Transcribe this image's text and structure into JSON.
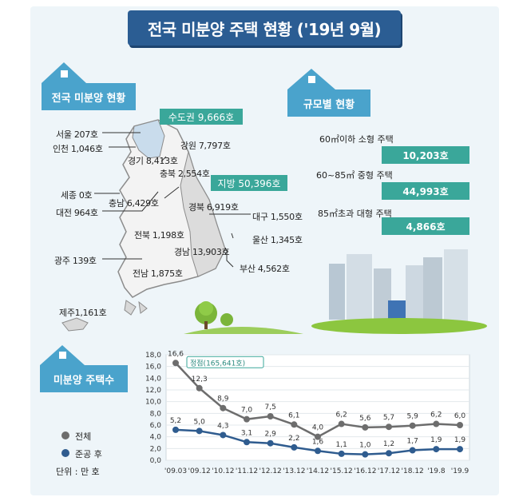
{
  "title": "전국 미분양 주택 현황 ('19년 9월)",
  "regional": {
    "heading": "전국 미분양 현황",
    "capital_badge": "수도권 9,666호",
    "provinces_badge": "지방 50,396호",
    "labels": {
      "seoul": "서울  207호",
      "incheon": "인천 1,046호",
      "gangwon": "강원 7,797호",
      "gyeonggi": "경기 8,413호",
      "chungbuk": "충북 2,554호",
      "sejong": "세종 0호",
      "chungnam": "충남 6,429호",
      "daejeon": "대전 964호",
      "gyeongbuk": "경북 6,919호",
      "daegu": "대구 1,550호",
      "jeonbuk": "전북 1,198호",
      "ulsan": "울산 1,345호",
      "gwangju": "광주 139호",
      "gyeongnam": "경남 13,903호",
      "busan": "부산 4,562호",
      "jeonnam": "전남 1,875호",
      "jeju": "제주1,161호"
    }
  },
  "size": {
    "heading": "규모별 현황",
    "items": [
      {
        "label": "60㎡이하 소형 주택",
        "value": "10,203호"
      },
      {
        "label": "60~85㎡ 중형 주택",
        "value": "44,993호"
      },
      {
        "label": "85㎡초과 대형 주택",
        "value": "4,866호"
      }
    ]
  },
  "count_heading": "미분양 주택수",
  "legend": {
    "total": "전체",
    "completed": "준공 후",
    "unit": "단위 : 만 호"
  },
  "colors": {
    "title_bg": "#2b5d93",
    "tag_bg": "#4aa3cc",
    "teal": "#3aa79a",
    "total": "#6d6d6d",
    "completed": "#2f5c8f"
  },
  "chart_data": {
    "type": "line",
    "categories": [
      "'09.03",
      "'09.12",
      "'10.12",
      "'11.12",
      "'12.12",
      "'13.12",
      "'14.12",
      "'15.12",
      "'16.12",
      "'17.12",
      "'18.12",
      "'19.8",
      "'19.9"
    ],
    "series": [
      {
        "name": "전체",
        "values": [
          16.6,
          12.3,
          8.9,
          7.0,
          7.5,
          6.1,
          4.0,
          6.2,
          5.6,
          5.7,
          5.9,
          6.2,
          6.0
        ],
        "labels": [
          "16,6",
          "12,3",
          "8,9",
          "7,0",
          "7,5",
          "6,1",
          "4,0",
          "6,2",
          "5,6",
          "5,7",
          "5,9",
          "6,2",
          "6,0"
        ]
      },
      {
        "name": "준공 후",
        "values": [
          5.2,
          5.0,
          4.3,
          3.1,
          2.9,
          2.2,
          1.6,
          1.1,
          1.0,
          1.2,
          1.7,
          1.9,
          1.9
        ],
        "labels": [
          "5,2",
          "5,0",
          "4,3",
          "3,1",
          "2,9",
          "2,2",
          "1,6",
          "1,1",
          "1,0",
          "1,2",
          "1,7",
          "1,9",
          "1,9"
        ]
      }
    ],
    "ylim": [
      0,
      18
    ],
    "yticks": [
      "0,0",
      "2,0",
      "4,0",
      "6,0",
      "8,0",
      "10,0",
      "12,0",
      "14,0",
      "16,0",
      "18,0"
    ],
    "annotation": "정점(165,641호)"
  }
}
